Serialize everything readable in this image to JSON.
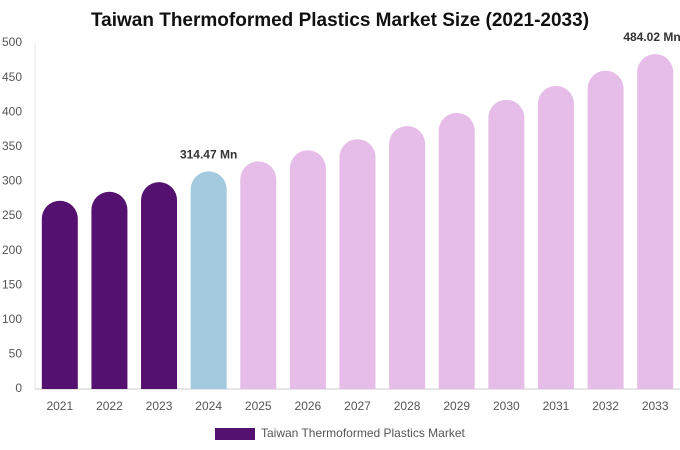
{
  "chart_data": {
    "type": "bar",
    "title": "Taiwan Thermoformed Plastics Market Size (2021-2033)",
    "categories": [
      "2021",
      "2022",
      "2023",
      "2024",
      "2025",
      "2026",
      "2027",
      "2028",
      "2029",
      "2030",
      "2031",
      "2032",
      "2033"
    ],
    "series": [
      {
        "name": "Taiwan Thermoformed Plastics Market",
        "color": "#541170",
        "colors": [
          "#541170",
          "#541170",
          "#541170",
          "#a3c9de",
          "#e6bde8",
          "#e6bde8",
          "#e6bde8",
          "#e6bde8",
          "#e6bde8",
          "#e6bde8",
          "#e6bde8",
          "#e6bde8",
          "#e6bde8"
        ],
        "values": [
          272,
          285,
          299,
          314.47,
          329,
          345,
          361,
          380,
          399,
          418,
          438,
          460,
          484.02
        ],
        "value_labels": [
          null,
          null,
          null,
          "314.47 Mn",
          null,
          null,
          null,
          null,
          null,
          null,
          null,
          null,
          "484.02 Mn"
        ]
      }
    ],
    "ylim": [
      0,
      500
    ],
    "yticks": [
      0,
      50,
      100,
      150,
      200,
      250,
      300,
      350,
      400,
      450,
      500
    ],
    "grid": false,
    "legend": "bottom"
  }
}
